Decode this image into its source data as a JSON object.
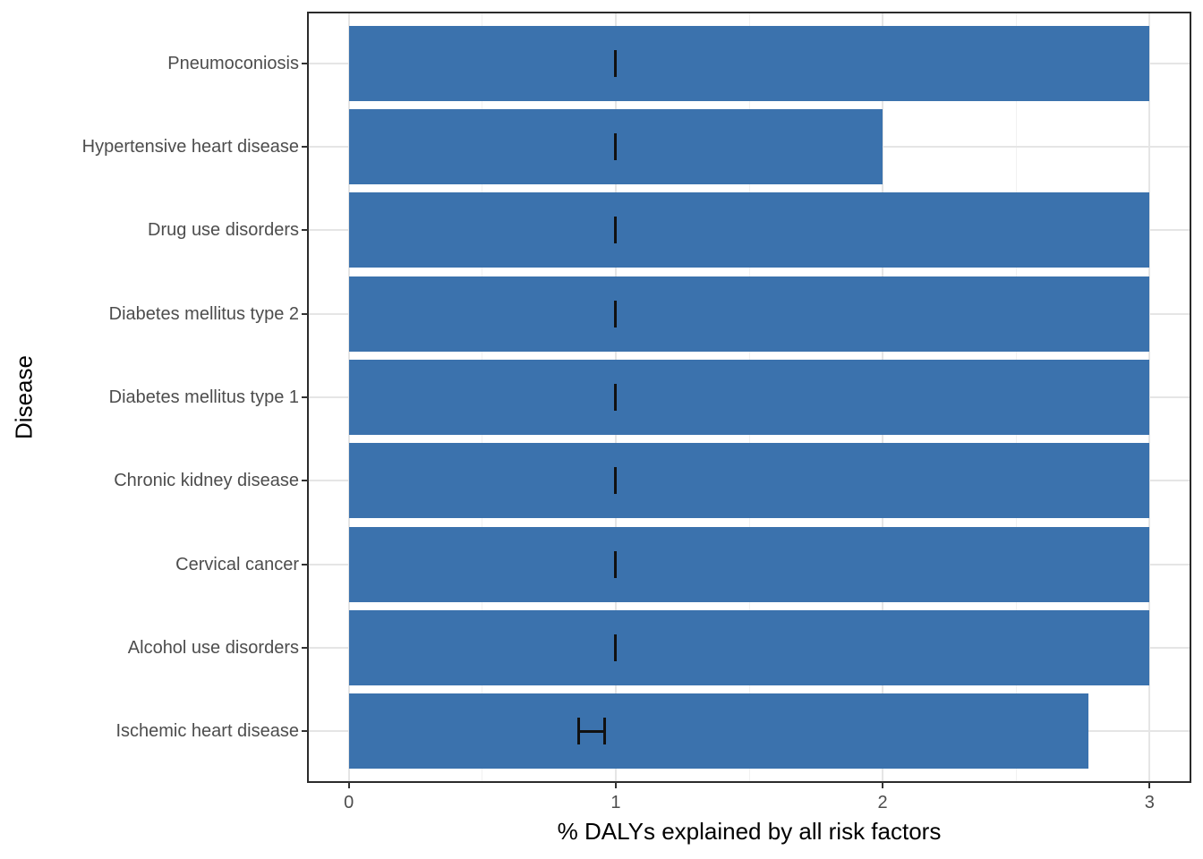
{
  "figure": {
    "background": "#FFFFFF"
  },
  "chart_data": {
    "type": "bar",
    "orientation": "horizontal",
    "title": "",
    "xlabel": "% DALYs explained by all risk factors",
    "ylabel": "Disease",
    "xlim": [
      0,
      3
    ],
    "x_ticks": [
      "0",
      "1",
      "2",
      "3"
    ],
    "x_tick_values": [
      0,
      1,
      2,
      3
    ],
    "x_minor_gridline_values": [
      0.5,
      1.5,
      2.5
    ],
    "grid": "major+minor",
    "legend_position": "none",
    "categories": [
      "Pneumoconiosis",
      "Hypertensive heart disease",
      "Drug use disorders",
      "Diabetes mellitus type 2",
      "Diabetes mellitus type 1",
      "Chronic kidney disease",
      "Cervical cancer",
      "Alcohol use disorders",
      "Ischemic heart disease"
    ],
    "values": [
      3.0,
      2.0,
      3.0,
      3.0,
      3.0,
      3.0,
      3.0,
      3.0,
      2.77
    ],
    "error_bars": [
      {
        "low": 1.0,
        "high": 1.0
      },
      {
        "low": 1.0,
        "high": 1.0
      },
      {
        "low": 1.0,
        "high": 1.0
      },
      {
        "low": 1.0,
        "high": 1.0
      },
      {
        "low": 1.0,
        "high": 1.0
      },
      {
        "low": 1.0,
        "high": 1.0
      },
      {
        "low": 1.0,
        "high": 1.0
      },
      {
        "low": 1.0,
        "high": 1.0
      },
      {
        "low": 0.86,
        "high": 0.96
      }
    ],
    "colors": {
      "bar": "#3B72AD",
      "error_bar": "#111111",
      "grid_major": "#E5E5E5",
      "grid_minor": "#F1F1F1",
      "panel_border": "#2B2B2B",
      "axis_tick": "#333333",
      "axis_text": "#4D4D4D",
      "axis_title": "#000000"
    }
  }
}
